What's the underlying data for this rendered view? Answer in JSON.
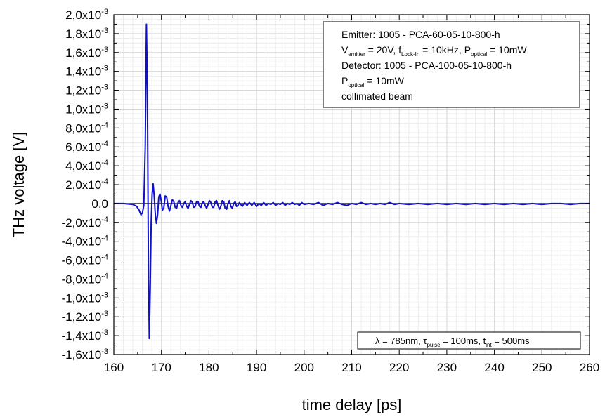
{
  "chart_data": {
    "type": "line",
    "xlabel": "time delay [ps]",
    "ylabel": "THz voltage [V]",
    "xlim": [
      160,
      260
    ],
    "ylim": [
      -0.0016,
      0.002
    ],
    "grid": true,
    "x_ticks": [
      "160",
      "170",
      "180",
      "190",
      "200",
      "210",
      "220",
      "230",
      "240",
      "250",
      "260"
    ],
    "y_ticks": [
      {
        "value": 0.002,
        "mantissa": "2,0",
        "exp": "-3"
      },
      {
        "value": 0.0018,
        "mantissa": "1,8",
        "exp": "-3"
      },
      {
        "value": 0.0016,
        "mantissa": "1,6",
        "exp": "-3"
      },
      {
        "value": 0.0014,
        "mantissa": "1,4",
        "exp": "-3"
      },
      {
        "value": 0.0012,
        "mantissa": "1,2",
        "exp": "-3"
      },
      {
        "value": 0.001,
        "mantissa": "1,0",
        "exp": "-3"
      },
      {
        "value": 0.0008,
        "mantissa": "8,0",
        "exp": "-4"
      },
      {
        "value": 0.0006,
        "mantissa": "6,0",
        "exp": "-4"
      },
      {
        "value": 0.0004,
        "mantissa": "4,0",
        "exp": "-4"
      },
      {
        "value": 0.0002,
        "mantissa": "2,0",
        "exp": "-4"
      },
      {
        "value": 0.0,
        "mantissa": "0,0",
        "exp": ""
      },
      {
        "value": -0.0002,
        "mantissa": "-2,0",
        "exp": "-4"
      },
      {
        "value": -0.0004,
        "mantissa": "-4,0",
        "exp": "-4"
      },
      {
        "value": -0.0006,
        "mantissa": "-6,0",
        "exp": "-4"
      },
      {
        "value": -0.0008,
        "mantissa": "-8,0",
        "exp": "-4"
      },
      {
        "value": -0.001,
        "mantissa": "-1,0",
        "exp": "-3"
      },
      {
        "value": -0.0012,
        "mantissa": "-1,2",
        "exp": "-3"
      },
      {
        "value": -0.0014,
        "mantissa": "-1,4",
        "exp": "-3"
      },
      {
        "value": -0.0016,
        "mantissa": "-1,6",
        "exp": "-3"
      }
    ],
    "tick_x_times": "x10",
    "series": [
      {
        "color": "#1010c8",
        "x": [
          160,
          162,
          164,
          164.8,
          165.3,
          165.7,
          166.0,
          166.3,
          166.6,
          166.85,
          167.05,
          167.25,
          167.45,
          167.65,
          167.85,
          168.05,
          168.25,
          168.45,
          168.7,
          168.95,
          169.2,
          169.45,
          169.7,
          169.95,
          170.2,
          170.5,
          170.8,
          171.1,
          171.4,
          171.7,
          172.0,
          172.3,
          172.6,
          172.9,
          173.2,
          173.5,
          173.8,
          174.1,
          174.4,
          174.7,
          175.0,
          175.3,
          175.6,
          175.9,
          176.2,
          176.5,
          176.8,
          177.1,
          177.4,
          177.7,
          178.0,
          178.3,
          178.6,
          178.9,
          179.2,
          179.5,
          179.8,
          180.1,
          180.4,
          180.7,
          181.0,
          181.3,
          181.6,
          181.9,
          182.2,
          182.5,
          182.8,
          183.1,
          183.4,
          183.7,
          184.0,
          184.3,
          184.6,
          184.9,
          185.2,
          185.5,
          185.8,
          186.1,
          186.4,
          186.7,
          187.0,
          187.5,
          188.0,
          188.5,
          189.0,
          189.5,
          190.0,
          190.5,
          191.0,
          191.5,
          192.0,
          192.5,
          193.0,
          193.5,
          194.0,
          194.5,
          195.0,
          195.5,
          196.0,
          196.5,
          197.0,
          197.5,
          198.0,
          198.5,
          199.0,
          199.5,
          200.0,
          201.0,
          202.0,
          203.0,
          204.0,
          205.0,
          206.0,
          207.0,
          208.0,
          209.0,
          210.0,
          211.0,
          212.0,
          213.0,
          214.0,
          215.0,
          216.0,
          217.0,
          218.0,
          219.0,
          220.0,
          222.0,
          224.0,
          226.0,
          228.0,
          230.0,
          232.0,
          234.0,
          236.0,
          238.0,
          240.0,
          242.0,
          244.0,
          246.0,
          248.0,
          250.0,
          252.0,
          254.0,
          256.0,
          258.0,
          260.0
        ],
        "y": [
          0.0,
          0.0,
          -1e-05,
          -3e-05,
          -7e-05,
          -0.00012,
          -0.0001,
          -2e-05,
          0.0006,
          0.0019,
          0.0012,
          -0.0005,
          -0.00143,
          -0.0009,
          -0.0002,
          0.0001,
          0.00021,
          0.0001,
          -0.0001,
          -0.00021,
          -0.00012,
          7e-05,
          0.0001,
          3e-05,
          -7e-05,
          -5e-05,
          8e-05,
          7e-05,
          -3e-05,
          -8e-05,
          -2e-05,
          4e-05,
          2e-05,
          -4e-05,
          -5e-05,
          1e-05,
          3e-05,
          -2e-05,
          -4e-05,
          0.0,
          2e-05,
          -3e-05,
          -5e-05,
          -1e-05,
          3e-05,
          1e-05,
          -4e-05,
          -3e-05,
          2e-05,
          2e-05,
          -3e-05,
          -4e-05,
          1e-05,
          2e-05,
          -2e-05,
          -5e-05,
          -1e-05,
          3e-05,
          1e-05,
          -4e-05,
          -4e-05,
          2e-05,
          3e-05,
          -2e-05,
          -6e-05,
          -3e-05,
          3e-05,
          2e-05,
          -5e-05,
          -6e-05,
          0.0,
          3e-05,
          -3e-05,
          -5e-05,
          0.0,
          2e-05,
          -3e-05,
          -2e-05,
          1e-05,
          -1e-05,
          -3e-05,
          1e-05,
          -2e-05,
          1e-05,
          -2e-05,
          1e-05,
          -3e-05,
          0.0,
          -2e-05,
          1e-05,
          -2e-05,
          0.0,
          -1e-05,
          1e-05,
          -2e-05,
          0.0,
          -1e-05,
          1e-05,
          -2e-05,
          0.0,
          -1e-05,
          1e-05,
          -1e-05,
          0.0,
          -2e-05,
          1e-05,
          -1e-05,
          0.0,
          -1e-05,
          1e-05,
          -2e-05,
          0.0,
          -1e-05,
          1e-05,
          -1e-05,
          -2e-05,
          0.0,
          -1e-05,
          1e-05,
          -1e-05,
          0.0,
          -1e-05,
          0.0,
          -1e-05,
          1e-05,
          -1e-05,
          0.0,
          -1e-05,
          0.0,
          -1e-05,
          0.0,
          -1e-05,
          0.0,
          -1e-05,
          0.0,
          -1e-05,
          0.0,
          -1e-05,
          0.0,
          -1e-05,
          0.0,
          -1e-05,
          0.0,
          0.0,
          -1e-05,
          0.0,
          0.0
        ]
      }
    ],
    "legend": {
      "lines": [
        [
          {
            "t": "Emitter: 1005 - PCA-60-05-10-800-h"
          }
        ],
        [
          {
            "t": "V"
          },
          {
            "t": "emitter",
            "sub": true
          },
          {
            "t": " = 20V, f"
          },
          {
            "t": "Lock-In",
            "sub": true
          },
          {
            "t": " = 10kHz, P"
          },
          {
            "t": "optical",
            "sub": true
          },
          {
            "t": " = 10mW"
          }
        ],
        [
          {
            "t": "Detector: 1005 - PCA-100-05-10-800-h"
          }
        ],
        [
          {
            "t": "P"
          },
          {
            "t": "optical",
            "sub": true
          },
          {
            "t": " = 10mW"
          }
        ],
        [
          {
            "t": "collimated beam"
          }
        ]
      ]
    },
    "note": [
      {
        "t": "λ = 785nm, τ"
      },
      {
        "t": "pulse",
        "sub": true
      },
      {
        "t": " = 100ms, t"
      },
      {
        "t": "int",
        "sub": true
      },
      {
        "t": " = 500ms"
      }
    ]
  }
}
